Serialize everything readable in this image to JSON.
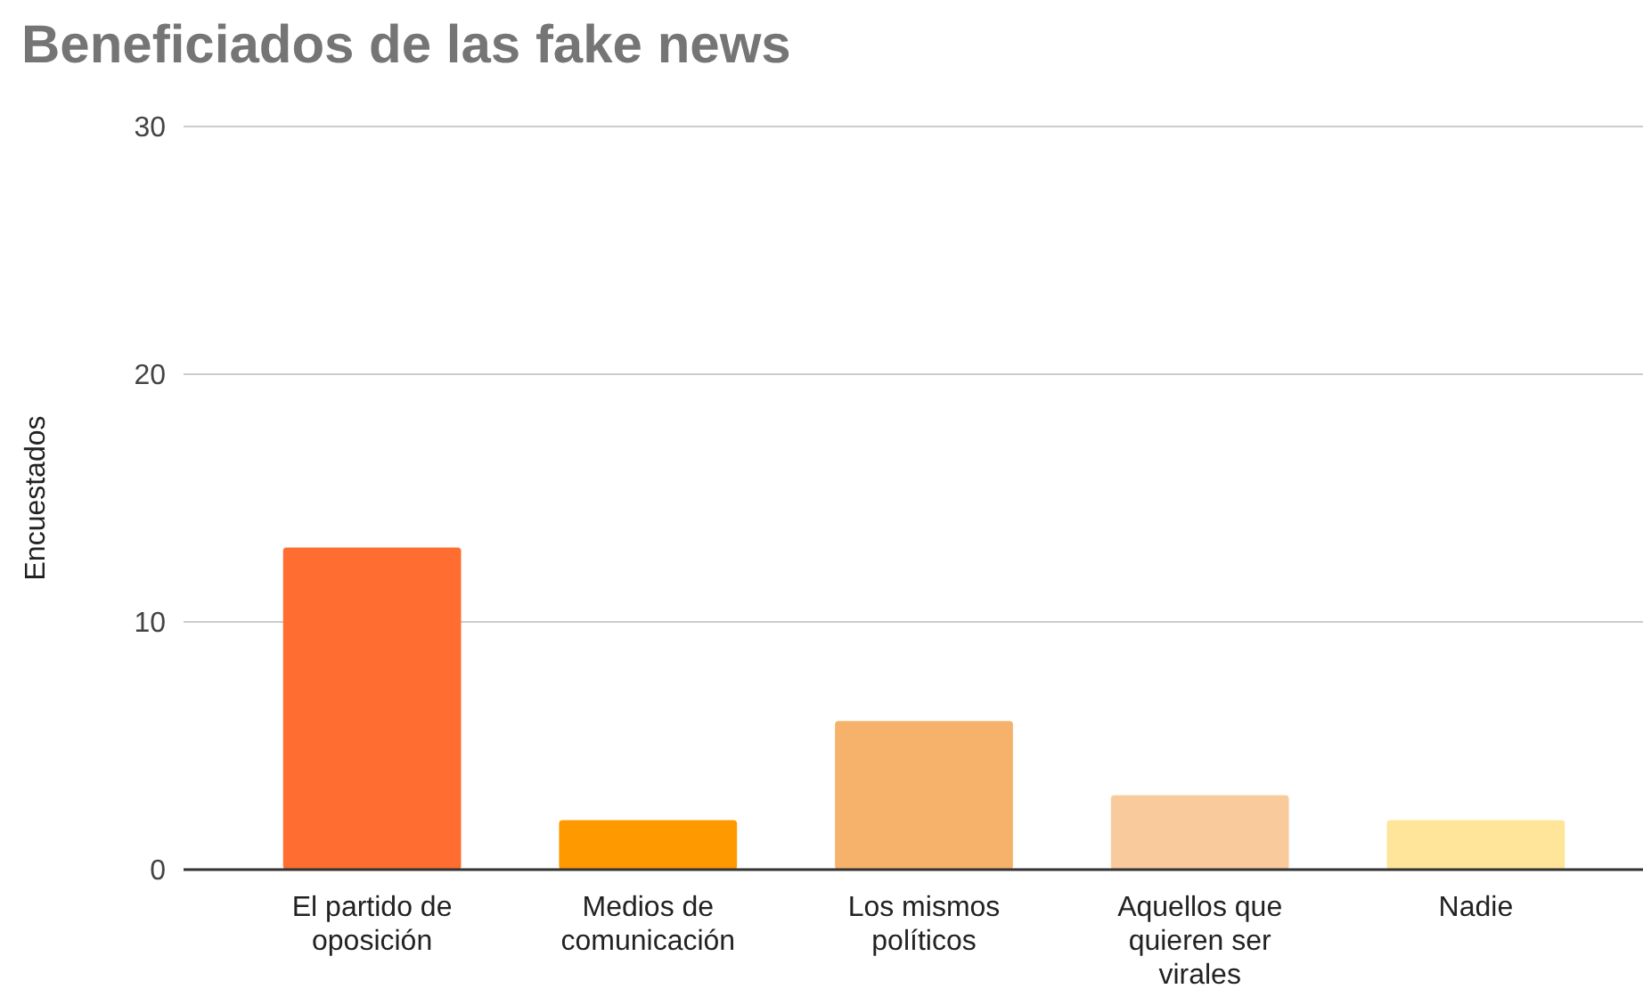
{
  "chart_data": {
    "type": "bar",
    "title": "Beneficiados de las fake news",
    "ylabel": "Encuestados",
    "categories": [
      "El partido de oposición",
      "Medios de comunicación",
      "Los mismos políticos",
      "Aquellos que quieren ser virales",
      "Nadie"
    ],
    "values": [
      13,
      2,
      6,
      3,
      2
    ],
    "colors": [
      "#ff6d31",
      "#ff9900",
      "#f6b26b",
      "#f9cb9c",
      "#ffe599"
    ],
    "ylim": [
      0,
      30
    ],
    "yticks": [
      0,
      10,
      20,
      30
    ],
    "grid": "y"
  }
}
